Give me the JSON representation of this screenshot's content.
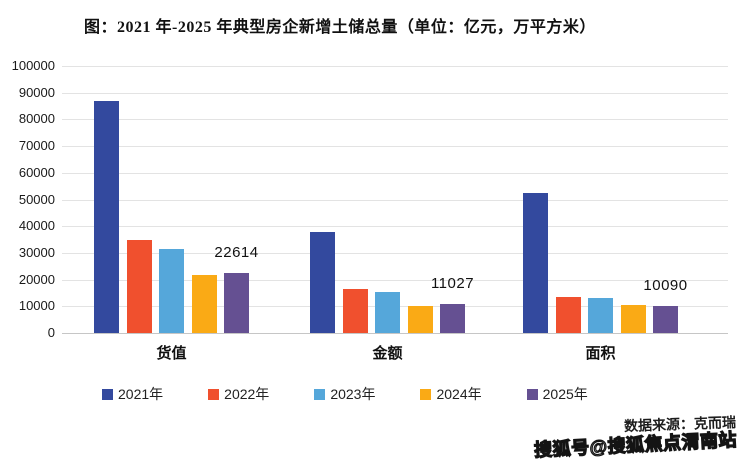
{
  "title": "图：2021 年-2025 年典型房企新增土储总量（单位：亿元，万平方米）",
  "chart_data": {
    "type": "bar",
    "title": "图：2021 年-2025 年典型房企新增土储总量（单位：亿元，万平方米）",
    "categories": [
      "货值",
      "金额",
      "面积"
    ],
    "series": [
      {
        "name": "2021年",
        "color": "#33499E",
        "values": [
          87000,
          37900,
          52500
        ]
      },
      {
        "name": "2022年",
        "color": "#F0502E",
        "values": [
          34800,
          16400,
          13600
        ]
      },
      {
        "name": "2023年",
        "color": "#55A7DA",
        "values": [
          31600,
          15400,
          13300
        ]
      },
      {
        "name": "2024年",
        "color": "#FAAA15",
        "values": [
          21900,
          10300,
          10500
        ]
      },
      {
        "name": "2025年",
        "color": "#655092",
        "values": [
          22614,
          11027,
          10090
        ],
        "data_labels": [
          "22614",
          "11027",
          "10090"
        ]
      }
    ],
    "ylim": [
      0,
      100000
    ],
    "ytick_step": 10000,
    "yticks": [
      "100000",
      "90000",
      "80000",
      "70000",
      "60000",
      "50000",
      "40000",
      "30000",
      "20000",
      "10000",
      "0"
    ],
    "grid": true,
    "legend_position": "bottom"
  },
  "footer": {
    "source": "数据来源：克而瑞",
    "watermark": "搜狐号@搜狐焦点渭南站"
  }
}
